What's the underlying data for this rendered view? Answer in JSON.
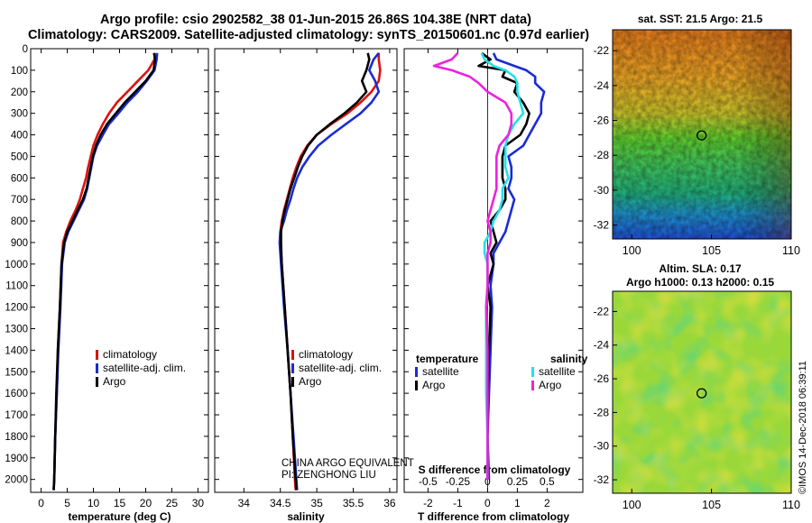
{
  "header": {
    "line1": "Argo profile: csio 2902582_38 01-Jun-2015 26.86S 104.38E (NRT data)",
    "line2": "Climatology: CARS2009. Satellite-adjusted climatology: synTS_20150601.nc (0.97d earlier)"
  },
  "colors": {
    "red": "#dd1111",
    "blue": "#1a2bd6",
    "black": "#000000",
    "cyan": "#22e0e8",
    "magenta": "#ee22dd"
  },
  "depth_ticks": [
    0,
    100,
    200,
    300,
    400,
    500,
    600,
    700,
    800,
    900,
    1000,
    1100,
    1200,
    1300,
    1400,
    1500,
    1600,
    1700,
    1800,
    1900,
    2000
  ],
  "credit": {
    "line1": "CHINA ARGO EQUIVALENT",
    "line2": "PI: ZENGHONG LIU"
  },
  "side": {
    "sst_title": "sat. SST: 21.5 Argo: 21.5",
    "sla_title1": "Altim. SLA: 0.17",
    "sla_title2": "Argo h1000: 0.13 h2000: 0.15",
    "lat_ticks": [
      "-22",
      "-24",
      "-26",
      "-28",
      "-30",
      "-32"
    ],
    "lon_ticks": [
      "100",
      "105",
      "110"
    ],
    "lat_values": [
      -22,
      -24,
      -26,
      -28,
      -30,
      -32
    ],
    "lon_values": [
      100,
      105,
      110
    ],
    "lat_range": [
      -32.8,
      -20.8
    ],
    "lon_range": [
      98.8,
      110
    ],
    "argo_position": {
      "lon": 104.38,
      "lat": -26.86
    },
    "stamp": "©IMOS 14-Dec-2018 06:39:11"
  },
  "chart_data": [
    {
      "type": "line",
      "name": "temperature profile",
      "xlabel": "temperature (deg C)",
      "ylabel": "depth",
      "xlim": [
        -2,
        32
      ],
      "ylim": [
        2060,
        0
      ],
      "xticks": [
        0,
        5,
        10,
        15,
        20,
        25,
        30
      ],
      "legend": [
        "climatology",
        "satellite-adj. clim.",
        "Argo"
      ],
      "series": [
        {
          "name": "climatology",
          "color": "red",
          "depth": [
            20,
            50,
            100,
            150,
            200,
            250,
            300,
            350,
            400,
            450,
            500,
            550,
            600,
            650,
            700,
            750,
            800,
            850,
            900,
            1000,
            1200,
            1400,
            1600,
            1800,
            2000,
            2050
          ],
          "values": [
            21.8,
            21.7,
            20.5,
            18.5,
            16.5,
            14.5,
            13.0,
            11.8,
            10.8,
            10.0,
            9.5,
            9.0,
            8.6,
            8.0,
            7.4,
            6.6,
            5.6,
            4.8,
            4.2,
            3.9,
            3.6,
            3.2,
            3.0,
            2.7,
            2.5,
            2.4
          ]
        },
        {
          "name": "satellite-adj. clim.",
          "color": "blue",
          "depth": [
            20,
            50,
            100,
            150,
            200,
            250,
            300,
            350,
            400,
            450,
            500,
            550,
            600,
            650,
            700,
            750,
            800,
            850,
            900,
            1000,
            1200,
            1400,
            1600,
            1800,
            2000,
            2050
          ],
          "values": [
            22.2,
            22.1,
            21.7,
            20.2,
            18.5,
            16.5,
            14.8,
            13.0,
            11.8,
            10.7,
            10.0,
            9.6,
            9.2,
            8.8,
            8.2,
            7.2,
            6.2,
            5.2,
            4.5,
            4.0,
            3.7,
            3.3,
            3.0,
            2.7,
            2.5,
            2.4
          ]
        },
        {
          "name": "Argo",
          "color": "black",
          "depth": [
            20,
            50,
            100,
            150,
            200,
            250,
            300,
            350,
            400,
            450,
            500,
            550,
            600,
            650,
            700,
            750,
            800,
            850,
            900,
            1000,
            1200,
            1400,
            1600,
            1800,
            2000,
            2050
          ],
          "values": [
            21.6,
            21.8,
            21.5,
            20.0,
            18.0,
            16.0,
            14.3,
            12.6,
            11.4,
            10.5,
            9.9,
            9.5,
            9.1,
            8.7,
            8.0,
            7.0,
            6.0,
            5.0,
            4.4,
            3.9,
            3.6,
            3.2,
            2.9,
            2.7,
            2.5,
            2.4
          ]
        }
      ]
    },
    {
      "type": "line",
      "name": "salinity profile",
      "xlabel": "salinity",
      "ylabel": "depth",
      "xlim": [
        33.6,
        36.1
      ],
      "ylim": [
        2060,
        0
      ],
      "xticks": [
        34,
        34.5,
        35,
        35.5,
        36
      ],
      "legend": [
        "climatology",
        "satellite-adj. clim.",
        "Argo"
      ],
      "series": [
        {
          "name": "climatology",
          "color": "red",
          "depth": [
            20,
            50,
            100,
            150,
            200,
            250,
            300,
            350,
            400,
            450,
            500,
            550,
            600,
            650,
            700,
            750,
            800,
            850,
            900,
            1000,
            1200,
            1400,
            1600,
            1800,
            2000,
            2050
          ],
          "values": [
            35.85,
            35.85,
            35.87,
            35.85,
            35.75,
            35.6,
            35.42,
            35.2,
            35.0,
            34.87,
            34.78,
            34.72,
            34.67,
            34.63,
            34.59,
            34.55,
            34.52,
            34.5,
            34.5,
            34.52,
            34.56,
            34.6,
            34.64,
            34.67,
            34.7,
            34.71
          ]
        },
        {
          "name": "satellite-adj. clim.",
          "color": "blue",
          "depth": [
            20,
            50,
            100,
            150,
            200,
            250,
            300,
            350,
            400,
            450,
            500,
            550,
            600,
            650,
            700,
            750,
            800,
            850,
            900,
            1000,
            1200,
            1400,
            1600,
            1800,
            2000,
            2050
          ],
          "values": [
            35.85,
            35.78,
            35.72,
            35.8,
            35.85,
            35.75,
            35.6,
            35.4,
            35.2,
            35.02,
            34.9,
            34.8,
            34.73,
            34.68,
            34.64,
            34.59,
            34.55,
            34.5,
            34.49,
            34.51,
            34.55,
            34.6,
            34.64,
            34.68,
            34.72,
            34.73
          ]
        },
        {
          "name": "Argo",
          "color": "black",
          "depth": [
            20,
            50,
            100,
            150,
            200,
            250,
            300,
            350,
            400,
            450,
            500,
            550,
            600,
            650,
            700,
            750,
            800,
            850,
            900,
            1000,
            1200,
            1400,
            1600,
            1800,
            2000,
            2050
          ],
          "values": [
            35.7,
            35.72,
            35.68,
            35.62,
            35.68,
            35.55,
            35.38,
            35.18,
            35.0,
            34.88,
            34.8,
            34.74,
            34.69,
            34.64,
            34.6,
            34.56,
            34.53,
            34.51,
            34.51,
            34.52,
            34.56,
            34.6,
            34.64,
            34.67,
            34.71,
            34.72
          ]
        }
      ]
    },
    {
      "type": "line",
      "name": "difference from climatology",
      "xlabel": "T difference from climatology",
      "xlabel_top": "S difference from climatology",
      "ylabel": "depth",
      "xlim": [
        -2.8,
        3.2
      ],
      "ylim": [
        2060,
        0
      ],
      "xticks": [
        -2,
        -1,
        0,
        1,
        2
      ],
      "xticks_top_labels": [
        "-0.5",
        "-0.25",
        "0",
        "0.25",
        "0.5"
      ],
      "xticks_top_positions": [
        -2,
        -1,
        0,
        1,
        2
      ],
      "legend_title_left": "temperature",
      "legend_title_right": "salinity",
      "legend": [
        "satellite",
        "Argo",
        "satellite",
        "Argo"
      ],
      "series": [
        {
          "name": "temperature satellite",
          "color": "blue",
          "depth": [
            20,
            50,
            80,
            100,
            130,
            160,
            200,
            250,
            300,
            350,
            400,
            450,
            500,
            550,
            600,
            650,
            700,
            750,
            800,
            850,
            900,
            950,
            1000,
            1100,
            1200,
            1400,
            1600,
            1800,
            2000
          ],
          "values": [
            0.2,
            0.3,
            0.9,
            1.3,
            1.6,
            1.6,
            1.9,
            1.8,
            1.8,
            1.6,
            1.4,
            1.2,
            0.7,
            0.8,
            0.8,
            0.7,
            0.9,
            0.8,
            0.7,
            0.6,
            0.4,
            0.2,
            0.2,
            0.1,
            0.15,
            0.1,
            0.05,
            0.0,
            0.05
          ]
        },
        {
          "name": "temperature Argo",
          "color": "black",
          "depth": [
            20,
            50,
            80,
            100,
            130,
            160,
            200,
            250,
            300,
            350,
            400,
            450,
            500,
            550,
            600,
            650,
            700,
            750,
            800,
            850,
            900,
            950,
            1000,
            1100,
            1200,
            1400,
            1600,
            1800,
            2000
          ],
          "values": [
            -0.2,
            0.1,
            -0.3,
            0.6,
            0.5,
            1.0,
            0.9,
            1.2,
            1.4,
            1.3,
            1.1,
            0.6,
            0.5,
            0.5,
            0.5,
            0.6,
            0.6,
            0.4,
            0.1,
            0.2,
            0.3,
            0.1,
            0.2,
            0.0,
            0.1,
            0.05,
            0.0,
            0.0,
            0.0
          ]
        },
        {
          "name": "salinity satellite",
          "color": "cyan",
          "depth": [
            20,
            50,
            80,
            100,
            130,
            160,
            200,
            250,
            300,
            350,
            400,
            450,
            500,
            550,
            600,
            650,
            700,
            750,
            800,
            850,
            900,
            950,
            1000,
            1100,
            1200,
            1400,
            1600,
            1800,
            2000
          ],
          "values": [
            -0.2,
            -0.1,
            0.2,
            0.6,
            0.9,
            1.0,
            1.0,
            1.1,
            1.2,
            0.9,
            0.7,
            0.6,
            0.6,
            0.6,
            0.7,
            0.5,
            0.5,
            0.4,
            0.2,
            0.1,
            -0.1,
            -0.1,
            0.0,
            0.0,
            -0.05,
            -0.05,
            -0.05,
            0.0,
            0.0
          ]
        },
        {
          "name": "salinity Argo",
          "color": "magenta",
          "depth": [
            20,
            50,
            80,
            100,
            130,
            160,
            200,
            250,
            300,
            350,
            400,
            450,
            500,
            550,
            600,
            650,
            700,
            750,
            800,
            850,
            900,
            950,
            1000,
            1100,
            1200,
            1400,
            1600,
            1800,
            2000
          ],
          "values": [
            -1.0,
            -1.2,
            -1.8,
            -1.2,
            -0.6,
            -0.3,
            0.0,
            0.6,
            0.8,
            0.8,
            0.7,
            0.4,
            0.3,
            0.3,
            0.3,
            0.3,
            0.2,
            0.1,
            0.0,
            0.1,
            0.1,
            0.0,
            0.0,
            0.0,
            -0.05,
            0.0,
            0.0,
            0.0,
            0.0
          ]
        }
      ]
    }
  ]
}
